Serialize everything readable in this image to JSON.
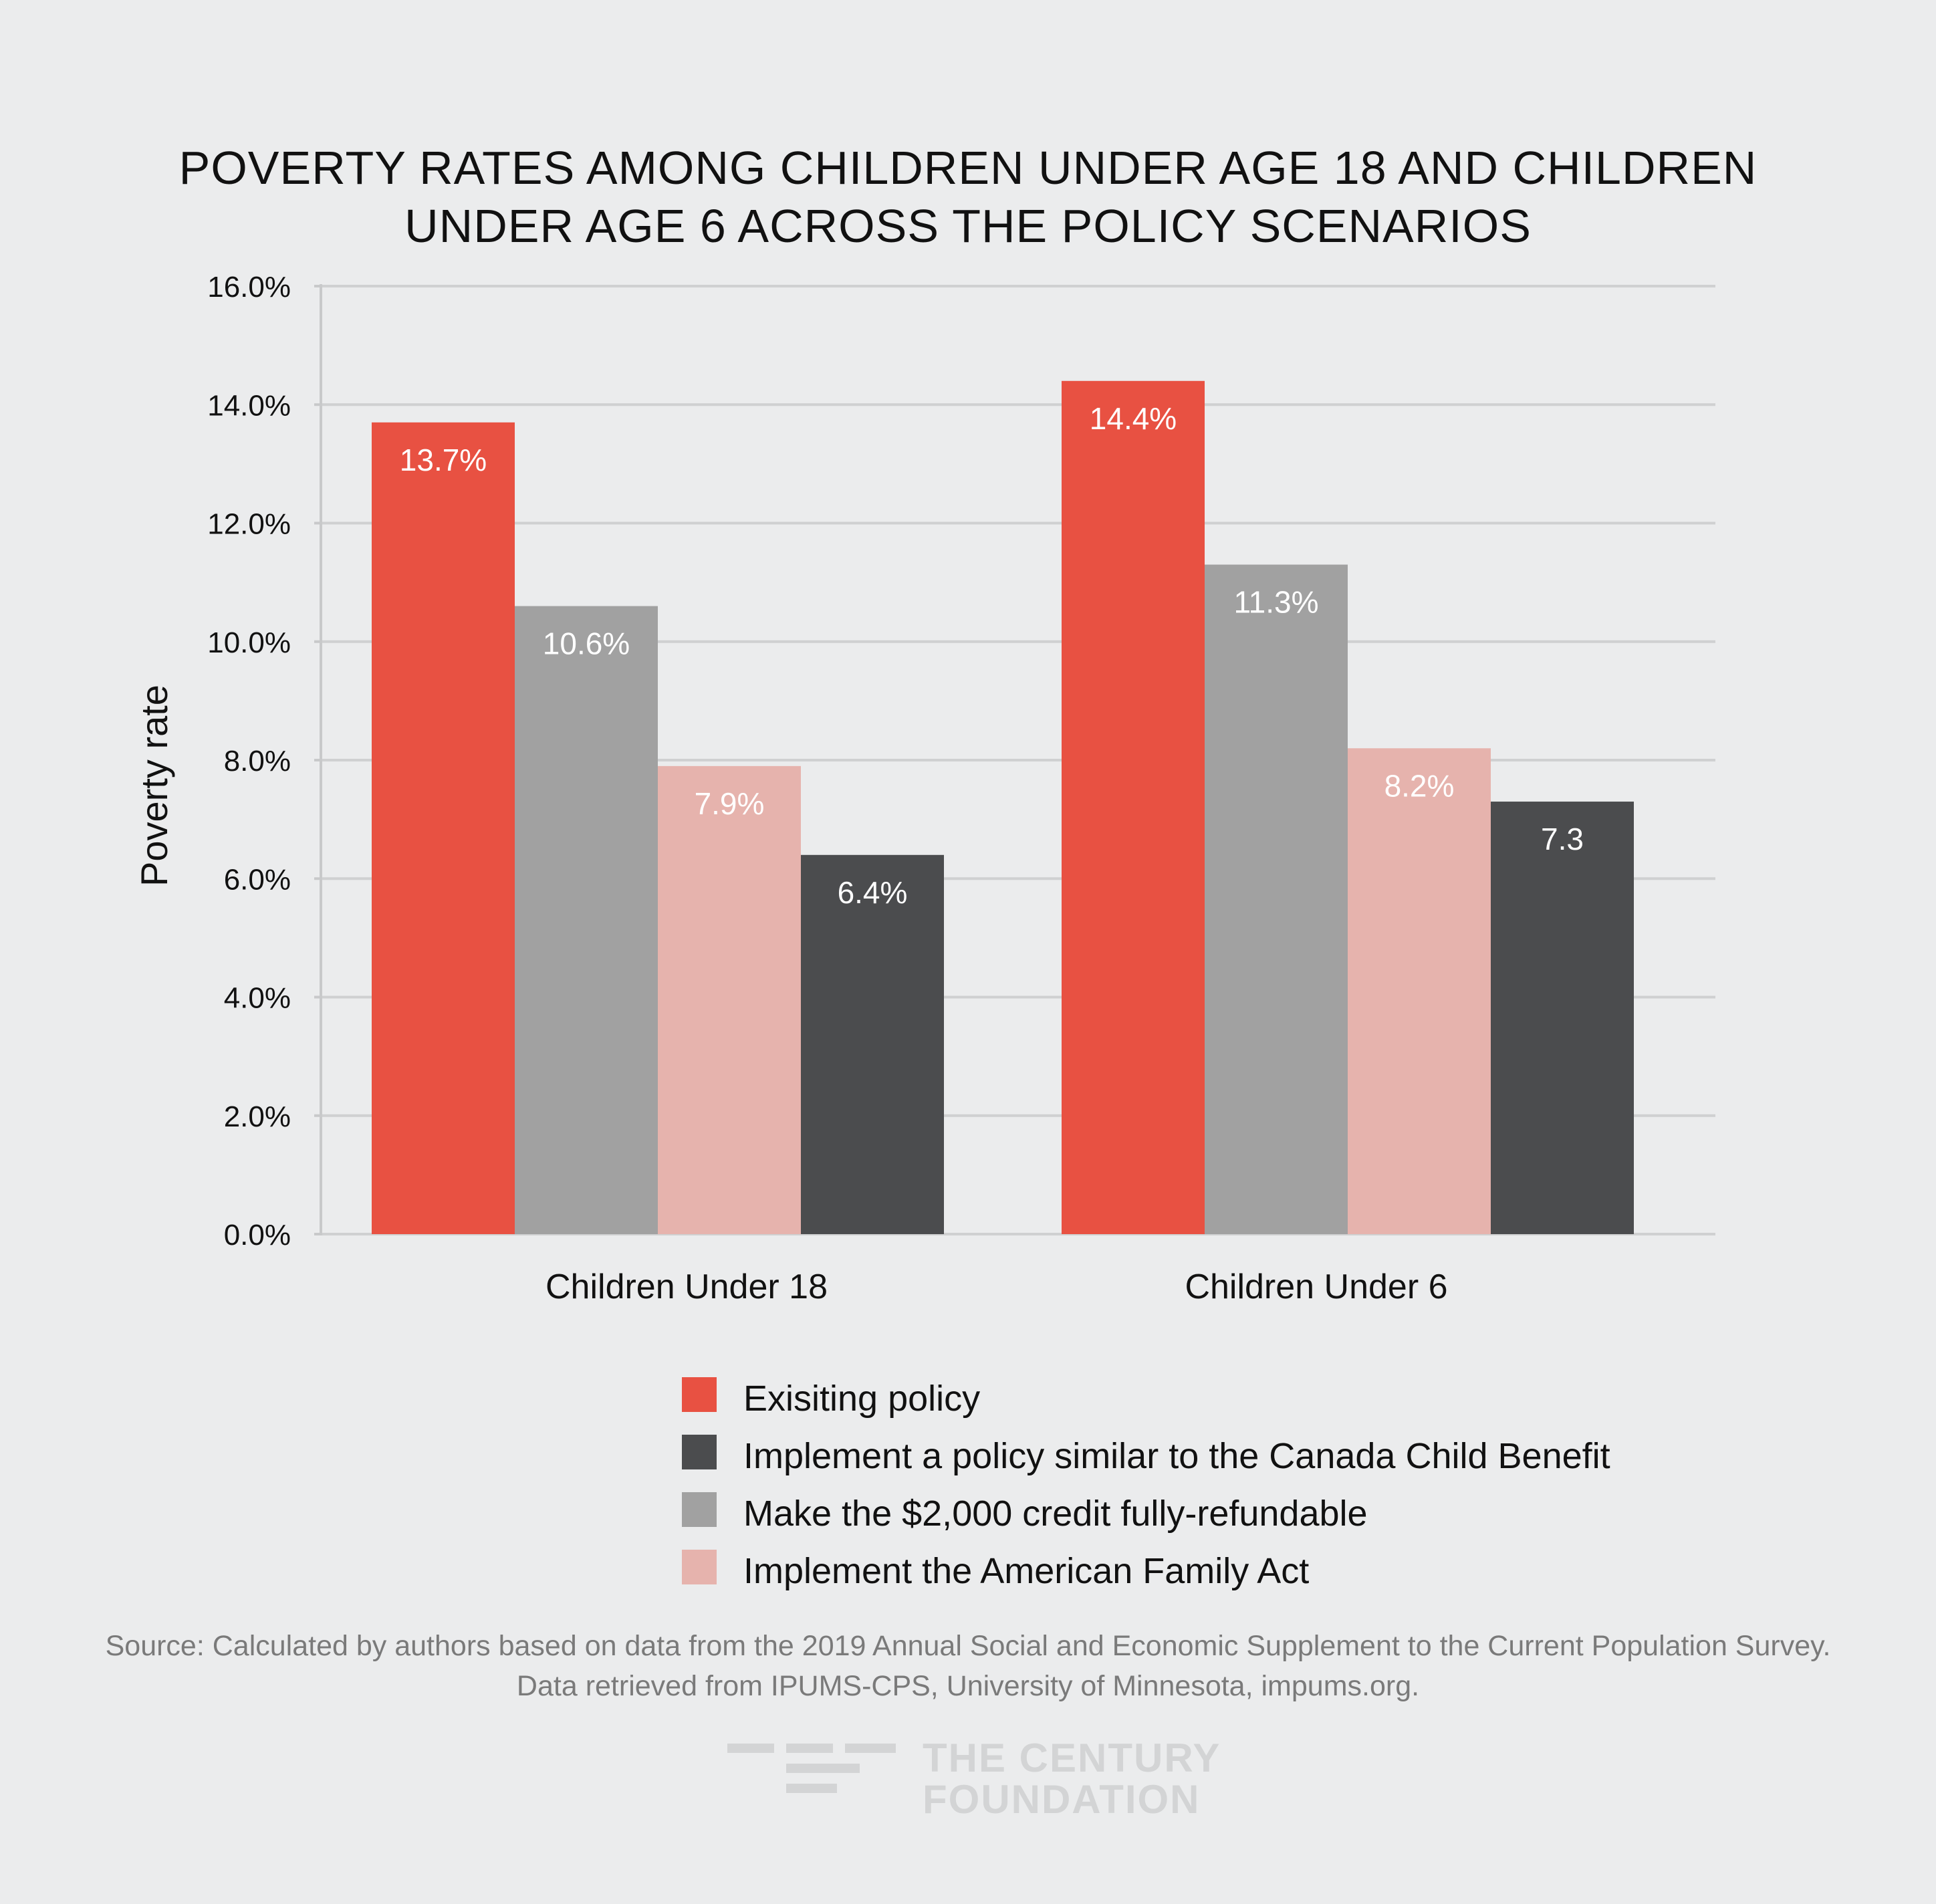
{
  "chart_data": {
    "type": "bar",
    "title_lines": [
      "POVERTY RATES AMONG CHILDREN UNDER AGE 18 AND CHILDREN",
      "UNDER AGE 6 ACROSS THE POLICY SCENARIOS"
    ],
    "ylabel": "Poverty rate",
    "xlabel": "",
    "ylim": [
      0,
      16
    ],
    "yticks": [
      "0.0%",
      "2.0%",
      "4.0%",
      "6.0%",
      "8.0%",
      "10.0%",
      "12.0%",
      "14.0%",
      "16.0%"
    ],
    "categories": [
      "Children Under 18",
      "Children Under 6"
    ],
    "grid": true,
    "legend_position": "bottom",
    "series": [
      {
        "name": "Exisiting policy",
        "color": "#e85142",
        "values": [
          13.7,
          14.4
        ],
        "labels": [
          "13.7%",
          "14.4%"
        ]
      },
      {
        "name": "Make the $2,000 credit fully-refundable",
        "color": "#a1a1a1",
        "values": [
          10.6,
          11.3
        ],
        "labels": [
          "10.6%",
          "11.3%"
        ]
      },
      {
        "name": "Implement the American Family Act",
        "color": "#e6b3ad",
        "values": [
          7.9,
          8.2
        ],
        "labels": [
          "7.9%",
          "8.2%"
        ]
      },
      {
        "name": "Implement a policy similar to the Canada Child Benefit",
        "color": "#4b4c4e",
        "values": [
          6.4,
          7.3
        ],
        "labels": [
          "6.4%",
          "7.3"
        ]
      }
    ],
    "legend_order": [
      "Exisiting policy",
      "Implement a policy similar to the Canada Child Benefit",
      "Make the $2,000 credit fully-refundable",
      "Implement the American Family Act"
    ]
  },
  "source": {
    "line1": "Source: Calculated by authors based on data from the 2019 Annual Social and Economic Supplement to the Current Population Survey.",
    "line2": "Data retrieved from IPUMS-CPS, University of Minnesota, impums.org."
  },
  "logo": {
    "line1": "THE CENTURY",
    "line2": "FOUNDATION"
  }
}
